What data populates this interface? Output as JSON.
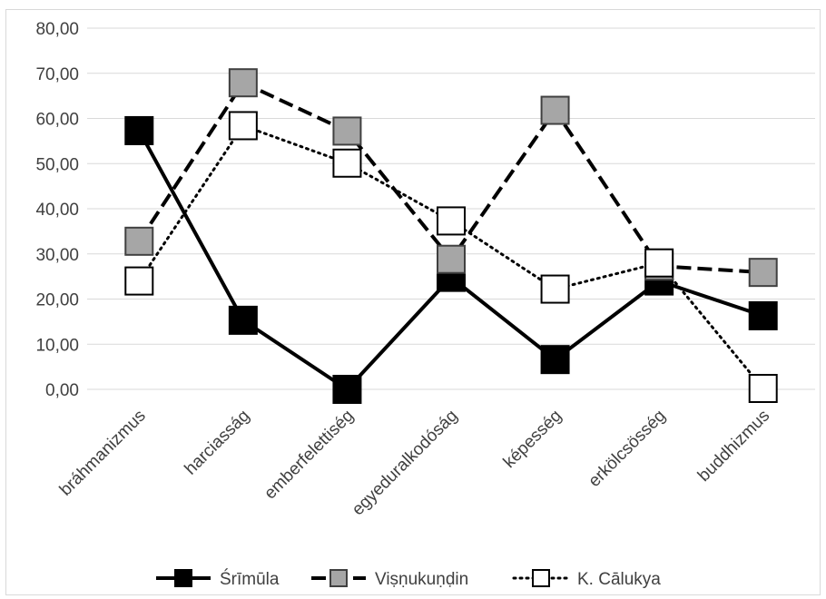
{
  "chart_data": {
    "type": "line",
    "categories": [
      "bráhmanizmus",
      "harciasság",
      "emberfelettiség",
      "egyeduralkodóság",
      "képesség",
      "erkölcsösség",
      "buddhizmus"
    ],
    "ylim": [
      0,
      80
    ],
    "ytick_step": 10,
    "ytick_labels": [
      "0,00",
      "10,00",
      "20,00",
      "30,00",
      "40,00",
      "50,00",
      "60,00",
      "70,00",
      "80,00"
    ],
    "grid": true,
    "legend_position": "bottom",
    "series": [
      {
        "name": "Śrīmūla",
        "values": [
          57.3,
          15.3,
          0.0,
          24.8,
          6.6,
          24.0,
          16.3
        ],
        "line": "solid",
        "marker_fill": "#000000",
        "marker_stroke": "#000000"
      },
      {
        "name": "Viṣṇukuṇḍin",
        "values": [
          32.8,
          67.9,
          57.2,
          28.8,
          61.8,
          27.3,
          25.9
        ],
        "line": "dashed",
        "marker_fill": "#a6a6a6",
        "marker_stroke": "#404040"
      },
      {
        "name": "K. Cālukya",
        "values": [
          24.0,
          58.4,
          50.1,
          37.3,
          22.2,
          28.0,
          0.2
        ],
        "line": "dotted",
        "marker_fill": "#ffffff",
        "marker_stroke": "#000000"
      }
    ]
  }
}
